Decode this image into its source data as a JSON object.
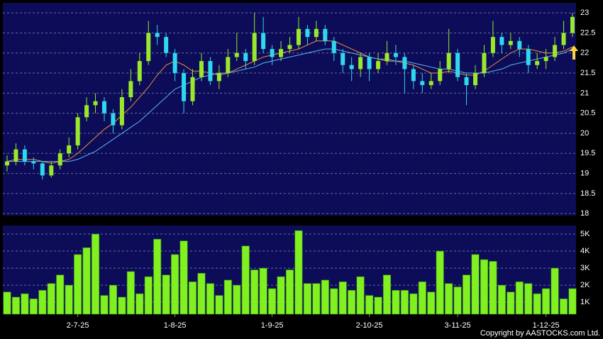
{
  "chart_data": [
    {
      "type": "candlestick",
      "open": [
        19.2,
        19.3,
        19.6,
        19.3,
        19.25,
        18.95,
        19.2,
        19.5,
        19.7,
        20.4,
        20.7,
        20.8,
        20.5,
        20.2,
        20.9,
        21.3,
        21.8,
        22.5,
        22.4,
        22.0,
        21.5,
        20.8,
        21.4,
        21.8,
        21.3,
        21.5,
        21.9,
        22.0,
        21.8,
        22.5,
        22.1,
        21.9,
        22.1,
        22.2,
        22.6,
        22.4,
        22.6,
        22.3,
        22.0,
        21.7,
        21.6,
        21.9,
        21.6,
        21.8,
        22.0,
        21.9,
        21.6,
        21.3,
        21.2,
        21.3,
        21.6,
        22.0,
        21.4,
        21.2,
        21.5,
        22.0,
        22.4,
        22.2,
        22.3,
        22.1,
        21.7,
        21.8,
        21.9,
        22.2,
        22.5
      ],
      "high": [
        19.45,
        19.75,
        19.7,
        19.4,
        19.3,
        19.3,
        19.6,
        19.9,
        20.5,
        20.9,
        21.0,
        20.9,
        20.6,
        21.1,
        21.6,
        22.0,
        22.8,
        22.7,
        22.5,
        22.1,
        21.6,
        21.6,
        22.0,
        21.9,
        21.7,
        22.1,
        22.5,
        22.1,
        23.0,
        22.9,
        22.2,
        22.3,
        22.4,
        22.9,
        22.7,
        22.8,
        22.7,
        22.4,
        22.1,
        21.9,
        22.0,
        22.0,
        22.0,
        22.3,
        22.2,
        22.0,
        21.7,
        21.5,
        21.5,
        21.8,
        22.6,
        22.1,
        21.5,
        21.7,
        22.2,
        22.8,
        22.5,
        22.5,
        22.4,
        22.2,
        22.0,
        22.1,
        22.4,
        22.8,
        23.0
      ],
      "low": [
        19.05,
        19.2,
        19.2,
        19.1,
        18.85,
        18.9,
        19.1,
        19.4,
        19.6,
        20.3,
        20.5,
        20.3,
        20.0,
        20.1,
        20.8,
        21.2,
        21.7,
        22.2,
        21.9,
        21.3,
        20.5,
        20.7,
        21.3,
        21.2,
        21.1,
        21.4,
        21.8,
        21.6,
        21.7,
        22.0,
        21.7,
        21.8,
        22.0,
        22.1,
        22.2,
        22.3,
        22.2,
        21.8,
        21.5,
        21.3,
        21.4,
        21.3,
        21.5,
        21.7,
        21.7,
        21.0,
        21.1,
        21.0,
        21.1,
        21.2,
        21.5,
        21.3,
        20.7,
        21.1,
        21.4,
        21.9,
        22.0,
        22.1,
        21.9,
        21.5,
        21.6,
        21.6,
        21.8,
        22.1,
        22.4
      ],
      "close": [
        19.3,
        19.6,
        19.3,
        19.25,
        18.95,
        19.2,
        19.5,
        19.7,
        20.4,
        20.7,
        20.8,
        20.5,
        20.2,
        20.9,
        21.3,
        21.8,
        22.5,
        22.4,
        22.0,
        21.5,
        20.8,
        21.4,
        21.8,
        21.3,
        21.5,
        21.9,
        22.0,
        21.8,
        22.5,
        22.1,
        21.9,
        22.1,
        22.2,
        22.6,
        22.4,
        22.6,
        22.3,
        22.0,
        21.7,
        21.6,
        21.9,
        21.6,
        21.8,
        22.0,
        21.9,
        21.6,
        21.3,
        21.2,
        21.3,
        21.6,
        22.0,
        21.4,
        21.2,
        21.5,
        22.0,
        22.4,
        22.2,
        22.3,
        22.1,
        21.7,
        21.8,
        21.9,
        22.2,
        22.5,
        22.9
      ],
      "up_color": "#9be82a",
      "down_color": "#2fd8ee",
      "series": [
        {
          "color": "#f0903a",
          "values": [
            19.3,
            19.35,
            19.35,
            19.35,
            19.3,
            19.25,
            19.3,
            19.35,
            19.5,
            19.7,
            19.9,
            20.1,
            20.25,
            20.45,
            20.65,
            20.9,
            21.15,
            21.45,
            21.7,
            21.8,
            21.7,
            21.55,
            21.55,
            21.5,
            21.45,
            21.5,
            21.6,
            21.7,
            21.8,
            21.9,
            21.95,
            22.0,
            22.05,
            22.1,
            22.2,
            22.3,
            22.3,
            22.3,
            22.2,
            22.1,
            22.0,
            21.9,
            21.85,
            21.8,
            21.8,
            21.75,
            21.7,
            21.6,
            21.5,
            21.5,
            21.55,
            21.5,
            21.45,
            21.45,
            21.55,
            21.7,
            21.85,
            22.0,
            22.1,
            22.1,
            22.05,
            22.0,
            22.0,
            22.05,
            22.15
          ]
        },
        {
          "color": "#5fb4f0",
          "values": [
            19.3,
            19.3,
            19.3,
            19.3,
            19.3,
            19.3,
            19.3,
            19.3,
            19.35,
            19.45,
            19.55,
            19.7,
            19.85,
            20.0,
            20.15,
            20.3,
            20.5,
            20.7,
            20.9,
            21.1,
            21.2,
            21.3,
            21.4,
            21.45,
            21.5,
            21.5,
            21.55,
            21.6,
            21.65,
            21.75,
            21.8,
            21.85,
            21.9,
            21.95,
            22.0,
            22.05,
            22.1,
            22.1,
            22.05,
            22.0,
            21.95,
            21.9,
            21.85,
            21.85,
            21.8,
            21.8,
            21.75,
            21.7,
            21.65,
            21.6,
            21.6,
            21.55,
            21.5,
            21.5,
            21.5,
            21.55,
            21.6,
            21.7,
            21.75,
            21.8,
            21.85,
            21.9,
            21.95,
            22.0,
            22.1
          ]
        }
      ],
      "ylim": [
        17.95,
        23.25
      ],
      "yticks": [
        18,
        18.5,
        19,
        19.5,
        20,
        20.5,
        21,
        21.5,
        22,
        22.5,
        23
      ],
      "grid": true
    },
    {
      "type": "bar",
      "categories": [
        null,
        null,
        null,
        null,
        null,
        null,
        null,
        null,
        "2-7-25",
        null,
        null,
        null,
        null,
        null,
        null,
        null,
        null,
        null,
        null,
        "1-8-25",
        null,
        null,
        null,
        null,
        null,
        null,
        null,
        null,
        null,
        null,
        "1-9-25",
        null,
        null,
        null,
        null,
        null,
        null,
        null,
        null,
        null,
        null,
        "2-10-25",
        null,
        null,
        null,
        null,
        null,
        null,
        null,
        null,
        null,
        "3-11-25",
        null,
        null,
        null,
        null,
        null,
        null,
        null,
        null,
        null,
        "1-12-25",
        null,
        null,
        null
      ],
      "values": [
        1600,
        1300,
        1500,
        1200,
        1700,
        2100,
        2600,
        2000,
        3800,
        4200,
        5000,
        1400,
        2000,
        1300,
        2800,
        1500,
        2500,
        4700,
        2600,
        3800,
        4600,
        2200,
        2700,
        2100,
        1400,
        2300,
        2000,
        4300,
        2900,
        3000,
        1800,
        2500,
        2900,
        5200,
        2100,
        2100,
        2300,
        1800,
        2200,
        1700,
        2500,
        1400,
        1300,
        2600,
        1700,
        1700,
        1500,
        2200,
        1600,
        4000,
        2100,
        1900,
        2600,
        3800,
        3500,
        3400,
        2000,
        1600,
        2200,
        2100,
        1500,
        1800,
        3000,
        1200,
        1800
      ],
      "color": "#80f020",
      "ylim": [
        300,
        5500
      ],
      "yticks": [
        {
          "value": 1000,
          "label": "1K"
        },
        {
          "value": 2000,
          "label": "2K"
        },
        {
          "value": 3000,
          "label": "3K"
        },
        {
          "value": 4000,
          "label": "4K"
        },
        {
          "value": 5000,
          "label": "5K"
        }
      ],
      "grid": true
    }
  ],
  "copyright": "Copyright by AASTOCKS.com Ltd."
}
